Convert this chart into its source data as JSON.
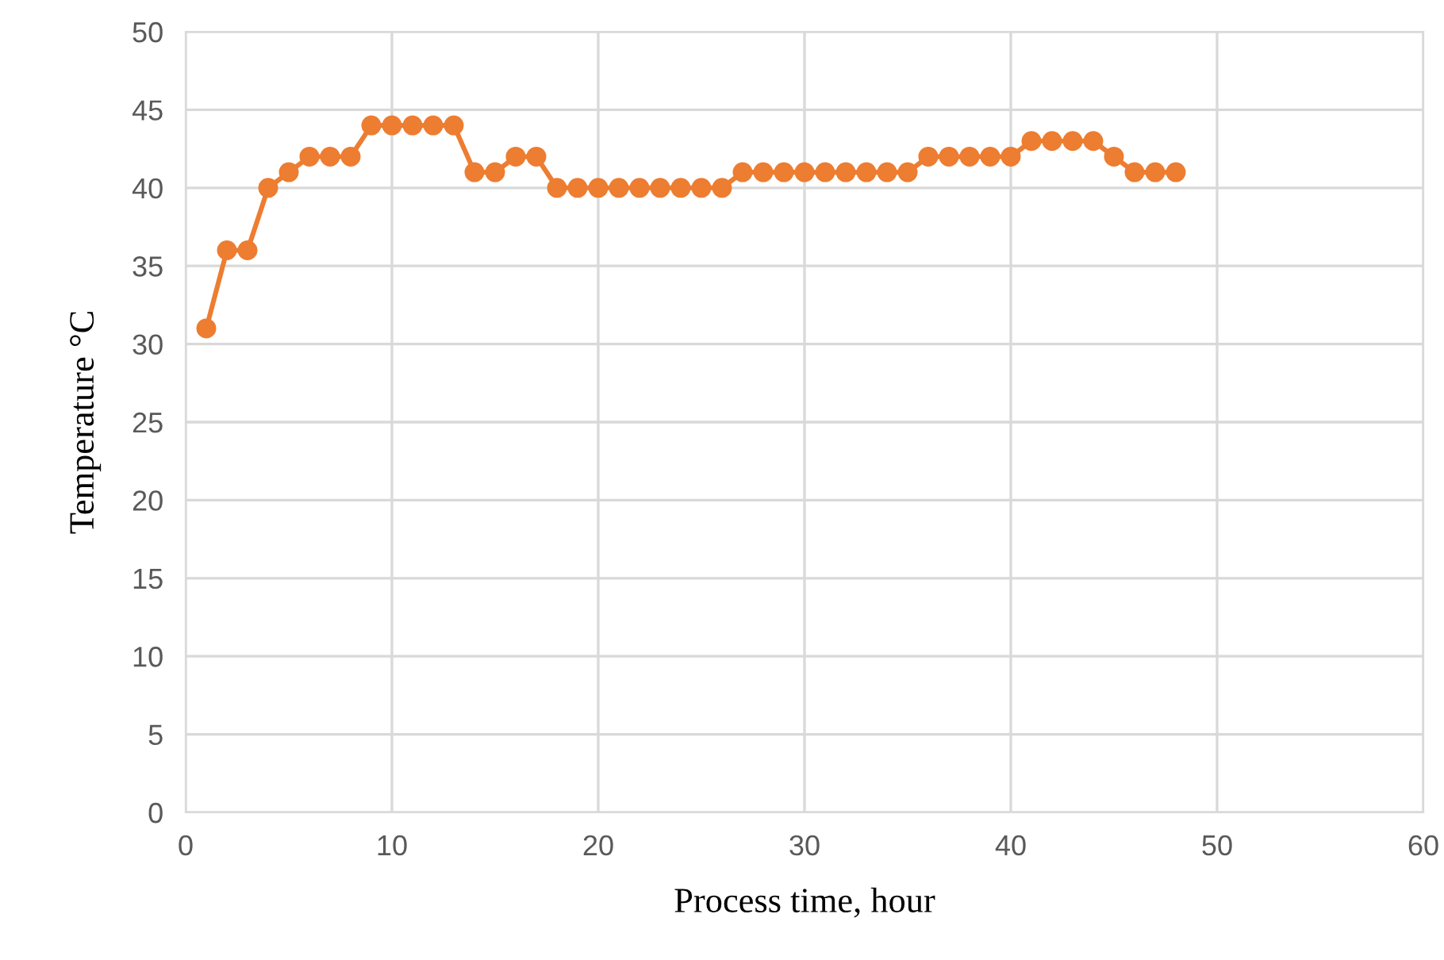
{
  "chart_data": {
    "type": "line",
    "xlabel": "Process time, hour",
    "ylabel": "Temperature °C",
    "x": [
      1,
      2,
      3,
      4,
      5,
      6,
      7,
      8,
      9,
      10,
      11,
      12,
      13,
      14,
      15,
      16,
      17,
      18,
      19,
      20,
      21,
      22,
      23,
      24,
      25,
      26,
      27,
      28,
      29,
      30,
      31,
      32,
      33,
      34,
      35,
      36,
      37,
      38,
      39,
      40,
      41,
      42,
      43,
      44,
      45,
      46,
      47,
      48
    ],
    "series": [
      {
        "color": "#ed7d31",
        "values": [
          31,
          36,
          36,
          40,
          41,
          42,
          42,
          42,
          44,
          44,
          44,
          44,
          44,
          41,
          41,
          42,
          42,
          40,
          40,
          40,
          40,
          40,
          40,
          40,
          40,
          40,
          41,
          41,
          41,
          41,
          41,
          41,
          41,
          41,
          41,
          42,
          42,
          42,
          42,
          42,
          43,
          43,
          43,
          43,
          42,
          41,
          41,
          41
        ]
      }
    ],
    "xlim": [
      0,
      60
    ],
    "xticks": [
      0,
      10,
      20,
      30,
      40,
      50,
      60
    ],
    "ylim": [
      0,
      50
    ],
    "yticks": [
      0,
      5,
      10,
      15,
      20,
      25,
      30,
      35,
      40,
      45,
      50
    ],
    "grid": true,
    "marker": "circle",
    "line_style": "solid",
    "legend": false
  }
}
